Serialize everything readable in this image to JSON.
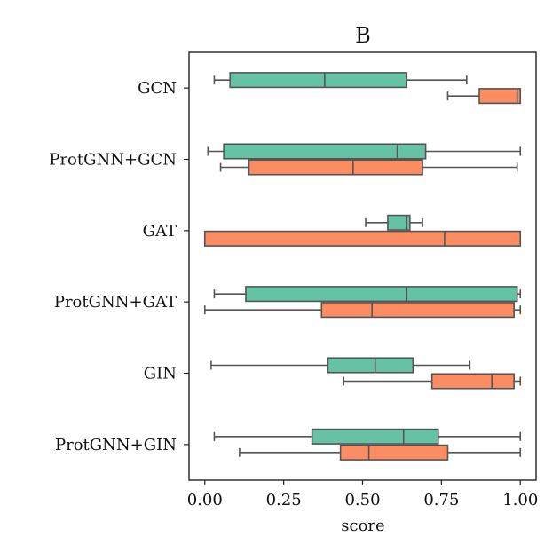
{
  "chart_data": {
    "type": "boxplot",
    "orientation": "horizontal",
    "title": "B",
    "xlabel": "score",
    "ylabel": "",
    "xlim": [
      -0.05,
      1.05
    ],
    "xticks": [
      0.0,
      0.25,
      0.5,
      0.75,
      1.0
    ],
    "xtick_labels": [
      "0.00",
      "0.25",
      "0.50",
      "0.75",
      "1.00"
    ],
    "categories": [
      "GCN",
      "ProtGNN+GCN",
      "GAT",
      "ProtGNN+GAT",
      "GIN",
      "ProtGNN+GIN"
    ],
    "series": [
      {
        "name": "series-teal",
        "color": "#66c2a5",
        "boxes": [
          {
            "whislo": 0.03,
            "q1": 0.08,
            "med": 0.38,
            "q3": 0.64,
            "whishi": 0.83
          },
          {
            "whislo": 0.01,
            "q1": 0.06,
            "med": 0.61,
            "q3": 0.7,
            "whishi": 1.0
          },
          {
            "whislo": 0.51,
            "q1": 0.58,
            "med": 0.64,
            "q3": 0.65,
            "whishi": 0.69
          },
          {
            "whislo": 0.03,
            "q1": 0.13,
            "med": 0.64,
            "q3": 0.99,
            "whishi": 1.0
          },
          {
            "whislo": 0.02,
            "q1": 0.39,
            "med": 0.54,
            "q3": 0.66,
            "whishi": 0.84
          },
          {
            "whislo": 0.03,
            "q1": 0.34,
            "med": 0.63,
            "q3": 0.74,
            "whishi": 1.0
          }
        ]
      },
      {
        "name": "series-orange",
        "color": "#fc8d62",
        "boxes": [
          {
            "whislo": 0.77,
            "q1": 0.87,
            "med": 0.99,
            "q3": 1.0,
            "whishi": 1.0
          },
          {
            "whislo": 0.05,
            "q1": 0.14,
            "med": 0.47,
            "q3": 0.69,
            "whishi": 0.99
          },
          {
            "whislo": 0.0,
            "q1": 0.0,
            "med": 0.76,
            "q3": 1.0,
            "whishi": 1.0
          },
          {
            "whislo": 0.0,
            "q1": 0.37,
            "med": 0.53,
            "q3": 0.98,
            "whishi": 1.0
          },
          {
            "whislo": 0.44,
            "q1": 0.72,
            "med": 0.91,
            "q3": 0.98,
            "whishi": 1.0
          },
          {
            "whislo": 0.11,
            "q1": 0.43,
            "med": 0.52,
            "q3": 0.77,
            "whishi": 1.0
          }
        ]
      }
    ],
    "grid": false,
    "legend": "none"
  }
}
